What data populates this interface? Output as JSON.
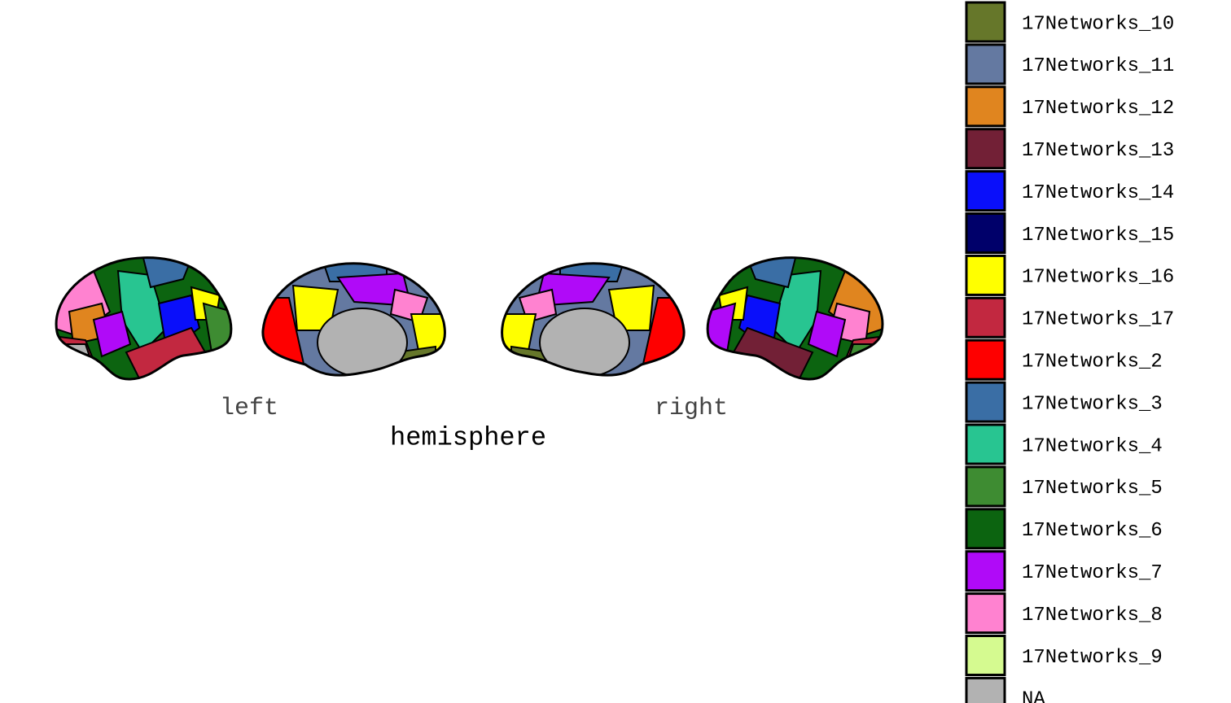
{
  "x_labels": [
    "left",
    "right"
  ],
  "x_title": "hemisphere",
  "legend": {
    "items": [
      {
        "name": "17Networks_10",
        "color": "#66772a"
      },
      {
        "name": "17Networks_11",
        "color": "#6479a1"
      },
      {
        "name": "17Networks_12",
        "color": "#e0851f"
      },
      {
        "name": "17Networks_13",
        "color": "#722036"
      },
      {
        "name": "17Networks_14",
        "color": "#0a0ffa"
      },
      {
        "name": "17Networks_15",
        "color": "#00006a"
      },
      {
        "name": "17Networks_16",
        "color": "#ffff00"
      },
      {
        "name": "17Networks_17",
        "color": "#c22840"
      },
      {
        "name": "17Networks_2",
        "color": "#fe0000"
      },
      {
        "name": "17Networks_3",
        "color": "#3a6ea5"
      },
      {
        "name": "17Networks_4",
        "color": "#28c591"
      },
      {
        "name": "17Networks_5",
        "color": "#3e8c32"
      },
      {
        "name": "17Networks_6",
        "color": "#0c6410"
      },
      {
        "name": "17Networks_7",
        "color": "#b00af8"
      },
      {
        "name": "17Networks_8",
        "color": "#ff82d0"
      },
      {
        "name": "17Networks_9",
        "color": "#d5fa90"
      },
      {
        "name": "NA",
        "color": "#b2b2b2"
      }
    ]
  }
}
